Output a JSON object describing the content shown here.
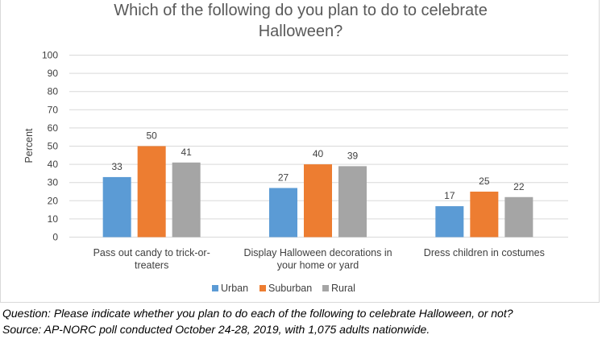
{
  "chart_data": {
    "type": "bar",
    "title": "Which of the following do you plan to do to celebrate Halloween?",
    "title_lines": [
      "Which of the following do you plan to do to celebrate",
      "Halloween?"
    ],
    "ylabel": "Percent",
    "xlabel": "",
    "ylim": [
      0,
      100
    ],
    "yticks": [
      0,
      10,
      20,
      30,
      40,
      50,
      60,
      70,
      80,
      90,
      100
    ],
    "grid": true,
    "legend_position": "bottom",
    "categories": [
      "Pass out candy to trick-or-treaters",
      "Display Halloween decorations in your home or yard",
      "Dress children in costumes"
    ],
    "category_label_lines": [
      [
        "Pass out candy to trick-or-",
        "treaters"
      ],
      [
        "Display Halloween decorations in",
        "your home or yard"
      ],
      [
        "Dress children in costumes"
      ]
    ],
    "series": [
      {
        "name": "Urban",
        "color": "#5b9bd5",
        "values": [
          33,
          27,
          17
        ]
      },
      {
        "name": "Suburban",
        "color": "#ed7d31",
        "values": [
          50,
          40,
          25
        ]
      },
      {
        "name": "Rural",
        "color": "#a5a5a5",
        "values": [
          41,
          39,
          22
        ]
      }
    ]
  },
  "footnotes": {
    "question": "Question:  Please indicate whether you plan to do each of the following to celebrate Halloween, or not?",
    "source": "Source: AP-NORC poll conducted October 24-28, 2019, with 1,075 adults nationwide."
  }
}
